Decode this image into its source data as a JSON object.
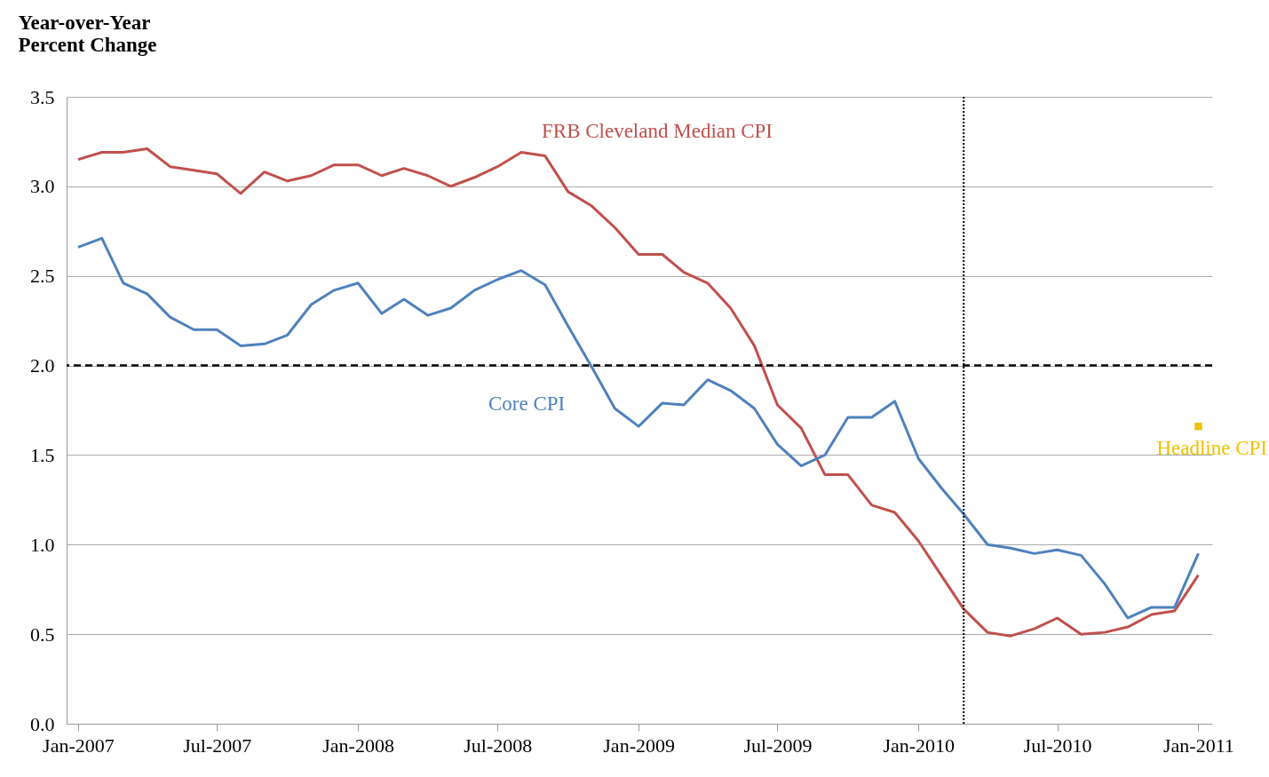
{
  "chart_data": {
    "type": "line",
    "ylabel": "Year-over-Year Percent Change",
    "x": [
      "2007-01",
      "2007-02",
      "2007-03",
      "2007-04",
      "2007-05",
      "2007-06",
      "2007-07",
      "2007-08",
      "2007-09",
      "2007-10",
      "2007-11",
      "2007-12",
      "2008-01",
      "2008-02",
      "2008-03",
      "2008-04",
      "2008-05",
      "2008-06",
      "2008-07",
      "2008-08",
      "2008-09",
      "2008-10",
      "2008-11",
      "2008-12",
      "2009-01",
      "2009-02",
      "2009-03",
      "2009-04",
      "2009-05",
      "2009-06",
      "2009-07",
      "2009-08",
      "2009-09",
      "2009-10",
      "2009-11",
      "2009-12",
      "2010-01",
      "2010-02",
      "2010-03",
      "2010-04",
      "2010-05",
      "2010-06",
      "2010-07",
      "2010-08",
      "2010-09",
      "2010-10",
      "2010-11",
      "2010-12",
      "2011-01"
    ],
    "series": [
      {
        "name": "FRB Cleveland Median CPI",
        "color": "#c0504d",
        "values": [
          3.15,
          3.19,
          3.19,
          3.21,
          3.11,
          3.09,
          3.07,
          2.96,
          3.08,
          3.03,
          3.06,
          3.12,
          3.12,
          3.06,
          3.1,
          3.06,
          3.0,
          3.05,
          3.11,
          3.19,
          3.17,
          2.97,
          2.89,
          2.77,
          2.62,
          2.62,
          2.52,
          2.46,
          2.32,
          2.11,
          1.78,
          1.65,
          1.39,
          1.39,
          1.22,
          1.18,
          1.02,
          0.82,
          0.64,
          0.51,
          0.49,
          0.53,
          0.59,
          0.5,
          0.51,
          0.54,
          0.61,
          0.63,
          0.83
        ]
      },
      {
        "name": "Core CPI",
        "color": "#4f81bd",
        "values": [
          2.66,
          2.71,
          2.46,
          2.4,
          2.27,
          2.2,
          2.2,
          2.11,
          2.12,
          2.17,
          2.34,
          2.42,
          2.46,
          2.29,
          2.37,
          2.28,
          2.32,
          2.42,
          2.48,
          2.53,
          2.45,
          2.22,
          1.99,
          1.76,
          1.66,
          1.79,
          1.78,
          1.92,
          1.86,
          1.76,
          1.56,
          1.44,
          1.5,
          1.71,
          1.71,
          1.8,
          1.48,
          1.31,
          1.17,
          1.0,
          0.98,
          0.95,
          0.97,
          0.94,
          0.78,
          0.59,
          0.65,
          0.65,
          0.95
        ]
      },
      {
        "name": "Headline CPI",
        "type": "scatter",
        "marker": "square",
        "color": "#f0c000",
        "x": [
          "2011-01"
        ],
        "values": [
          1.66
        ]
      }
    ],
    "xlim": [
      "2006-12-17",
      "2011-01-19"
    ],
    "xticks": [
      {
        "value": "2007-01",
        "label": "Jan-2007"
      },
      {
        "value": "2007-07",
        "label": "Jul-2007"
      },
      {
        "value": "2008-01",
        "label": "Jan-2008"
      },
      {
        "value": "2008-07",
        "label": "Jul-2008"
      },
      {
        "value": "2009-01",
        "label": "Jan-2009"
      },
      {
        "value": "2009-07",
        "label": "Jul-2009"
      },
      {
        "value": "2010-01",
        "label": "Jan-2010"
      },
      {
        "value": "2010-07",
        "label": "Jul-2010"
      },
      {
        "value": "2011-01",
        "label": "Jan-2011"
      }
    ],
    "ylim": [
      0,
      3.5
    ],
    "yticks": [
      {
        "value": 0,
        "label": "0.0"
      },
      {
        "value": 0.5,
        "label": "0.5"
      },
      {
        "value": 1,
        "label": "1.0"
      },
      {
        "value": 1.5,
        "label": "1.5"
      },
      {
        "value": 2,
        "label": "2.0"
      },
      {
        "value": 2.5,
        "label": "2.5"
      },
      {
        "value": 3,
        "label": "3.0"
      },
      {
        "value": 3.5,
        "label": "3.5"
      }
    ],
    "ref_lines": [
      {
        "axis": "y",
        "value": 2,
        "color": "#000000",
        "line_style": "dashed"
      },
      {
        "axis": "x",
        "value": "2010-03",
        "color": "#000000",
        "line_style": "dotted"
      }
    ],
    "grid": "y",
    "marker": "none",
    "line_style": "solid"
  }
}
